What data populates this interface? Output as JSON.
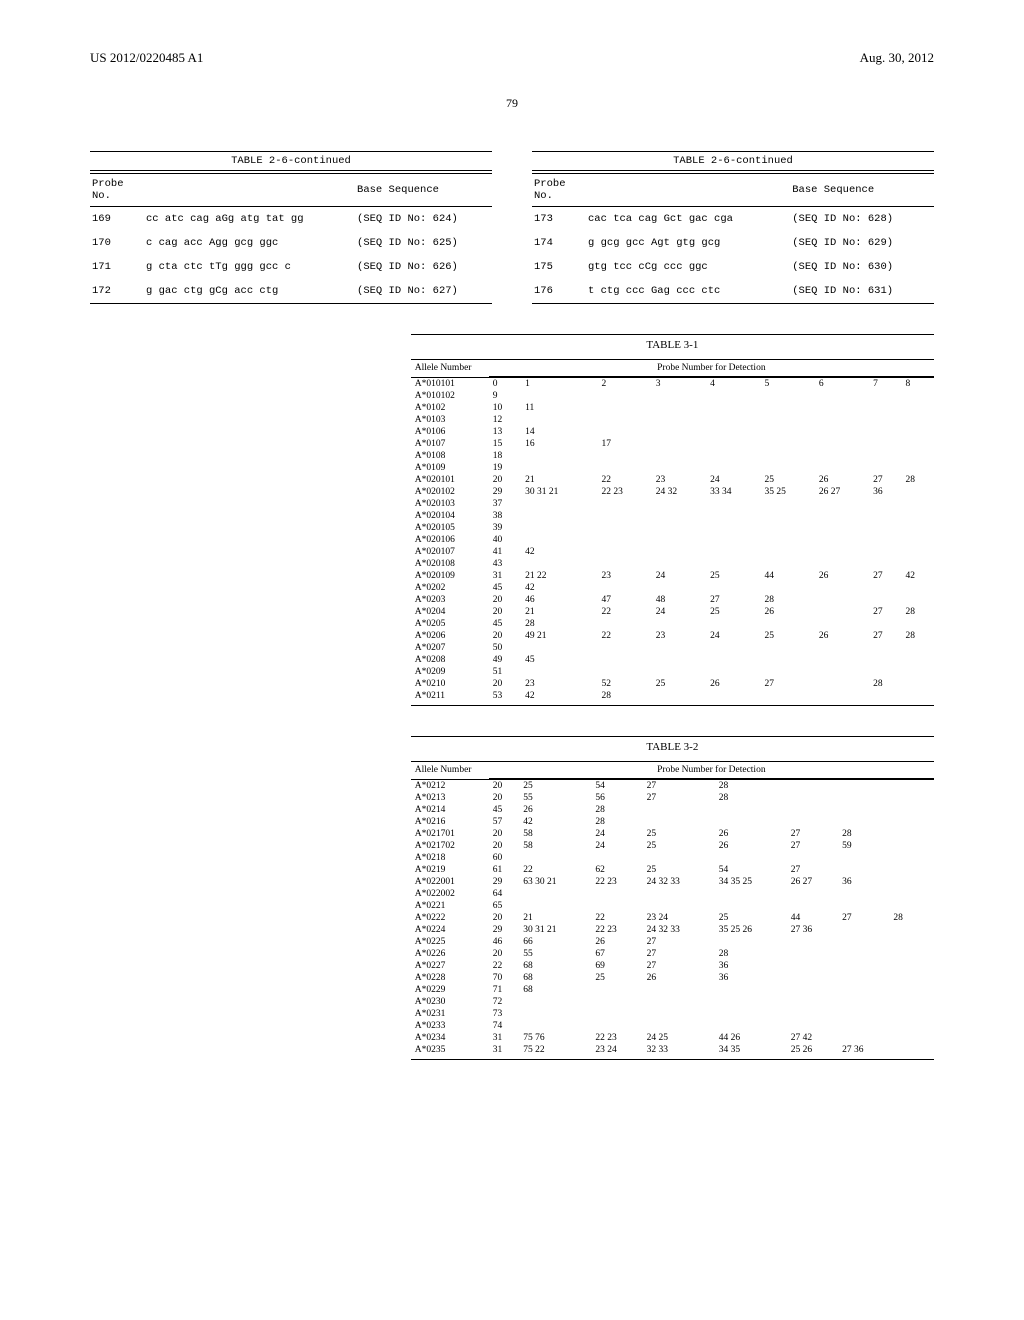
{
  "header": {
    "left": "US 2012/0220485 A1",
    "right": "Aug. 30, 2012"
  },
  "page_number": "79",
  "table26_left": {
    "caption": "TABLE 2-6-continued",
    "header_col1": "Probe\nNo.",
    "header_col2": "Base Sequence",
    "rows": [
      {
        "no": "169",
        "seq": "cc atc cag aGg atg tat gg",
        "id": "(SEQ ID No: 624)"
      },
      {
        "no": "170",
        "seq": "c cag acc Agg gcg ggc",
        "id": "(SEQ ID No: 625)"
      },
      {
        "no": "171",
        "seq": "g cta ctc tTg ggg gcc c",
        "id": "(SEQ ID No: 626)"
      },
      {
        "no": "172",
        "seq": "g gac ctg gCg acc ctg",
        "id": "(SEQ ID No: 627)"
      }
    ]
  },
  "table26_right": {
    "caption": "TABLE 2-6-continued",
    "header_col1": "Probe\nNo.",
    "header_col2": "Base Sequence",
    "rows": [
      {
        "no": "173",
        "seq": "cac tca cag Gct gac cga",
        "id": "(SEQ ID No: 628)"
      },
      {
        "no": "174",
        "seq": "g gcg gcc Agt gtg gcg",
        "id": "(SEQ ID No: 629)"
      },
      {
        "no": "175",
        "seq": "gtg tcc cCg ccc ggc",
        "id": "(SEQ ID No: 630)"
      },
      {
        "no": "176",
        "seq": "t ctg ccc Gag ccc ctc",
        "id": "(SEQ ID No: 631)"
      }
    ]
  },
  "table31": {
    "caption": "TABLE 3-1",
    "header_allele": "Allele Number",
    "header_group": "Probe Number for Detection",
    "rows": [
      {
        "a": "A*010101",
        "c": [
          "0",
          "1",
          "2",
          "3",
          "4",
          "5",
          "6",
          "7",
          "8"
        ]
      },
      {
        "a": "A*010102",
        "c": [
          "9",
          "",
          "",
          "",
          "",
          "",
          "",
          "",
          ""
        ]
      },
      {
        "a": "A*0102",
        "c": [
          "10",
          "11",
          "",
          "",
          "",
          "",
          "",
          "",
          ""
        ]
      },
      {
        "a": "A*0103",
        "c": [
          "12",
          "",
          "",
          "",
          "",
          "",
          "",
          "",
          ""
        ]
      },
      {
        "a": "A*0106",
        "c": [
          "13",
          "14",
          "",
          "",
          "",
          "",
          "",
          "",
          ""
        ]
      },
      {
        "a": "A*0107",
        "c": [
          "15",
          "16",
          "17",
          "",
          "",
          "",
          "",
          "",
          ""
        ]
      },
      {
        "a": "A*0108",
        "c": [
          "18",
          "",
          "",
          "",
          "",
          "",
          "",
          "",
          ""
        ]
      },
      {
        "a": "A*0109",
        "c": [
          "19",
          "",
          "",
          "",
          "",
          "",
          "",
          "",
          ""
        ]
      },
      {
        "a": "A*020101",
        "c": [
          "20",
          "21",
          "22",
          "23",
          "24",
          "25",
          "26",
          "27",
          "28"
        ]
      },
      {
        "a": "A*020102",
        "c": [
          "29",
          "30 31 21",
          "22 23",
          "24 32",
          "33 34",
          "35 25",
          "26 27",
          "36",
          ""
        ]
      },
      {
        "a": "A*020103",
        "c": [
          "37",
          "",
          "",
          "",
          "",
          "",
          "",
          "",
          ""
        ]
      },
      {
        "a": "A*020104",
        "c": [
          "38",
          "",
          "",
          "",
          "",
          "",
          "",
          "",
          ""
        ]
      },
      {
        "a": "A*020105",
        "c": [
          "39",
          "",
          "",
          "",
          "",
          "",
          "",
          "",
          ""
        ]
      },
      {
        "a": "A*020106",
        "c": [
          "40",
          "",
          "",
          "",
          "",
          "",
          "",
          "",
          ""
        ]
      },
      {
        "a": "A*020107",
        "c": [
          "41",
          "42",
          "",
          "",
          "",
          "",
          "",
          "",
          ""
        ]
      },
      {
        "a": "A*020108",
        "c": [
          "43",
          "",
          "",
          "",
          "",
          "",
          "",
          "",
          ""
        ]
      },
      {
        "a": "A*020109",
        "c": [
          "31",
          "21   22",
          "23",
          "24",
          "25",
          "44",
          "26",
          "27",
          "42"
        ]
      },
      {
        "a": "A*0202",
        "c": [
          "45",
          "42",
          "",
          "",
          "",
          "",
          "",
          "",
          ""
        ]
      },
      {
        "a": "A*0203",
        "c": [
          "20",
          "46",
          "47",
          "48",
          "27",
          "28",
          "",
          "",
          ""
        ]
      },
      {
        "a": "A*0204",
        "c": [
          "20",
          "21",
          "22",
          "24",
          "25",
          "26",
          "",
          "27",
          "28"
        ]
      },
      {
        "a": "A*0205",
        "c": [
          "45",
          "28",
          "",
          "",
          "",
          "",
          "",
          "",
          ""
        ]
      },
      {
        "a": "A*0206",
        "c": [
          "20",
          "49   21",
          "22",
          "23",
          "24",
          "25",
          "26",
          "27",
          "28"
        ]
      },
      {
        "a": "A*0207",
        "c": [
          "50",
          "",
          "",
          "",
          "",
          "",
          "",
          "",
          ""
        ]
      },
      {
        "a": "A*0208",
        "c": [
          "49",
          "45",
          "",
          "",
          "",
          "",
          "",
          "",
          ""
        ]
      },
      {
        "a": "A*0209",
        "c": [
          "51",
          "",
          "",
          "",
          "",
          "",
          "",
          "",
          ""
        ]
      },
      {
        "a": "A*0210",
        "c": [
          "20",
          "23",
          "52",
          "25",
          "26",
          "27",
          "",
          "28",
          ""
        ]
      },
      {
        "a": "A*0211",
        "c": [
          "53",
          "42",
          "28",
          "",
          "",
          "",
          "",
          "",
          ""
        ]
      }
    ]
  },
  "table32": {
    "caption": "TABLE 3-2",
    "header_allele": "Allele Number",
    "header_group": "Probe Number for Detection",
    "rows": [
      {
        "a": "A*0212",
        "c": [
          "20",
          "25",
          "54",
          "27",
          "28",
          "",
          "",
          "",
          ""
        ]
      },
      {
        "a": "A*0213",
        "c": [
          "20",
          "55",
          "56",
          "27",
          "28",
          "",
          "",
          "",
          ""
        ]
      },
      {
        "a": "A*0214",
        "c": [
          "45",
          "26",
          "28",
          "",
          "",
          "",
          "",
          "",
          ""
        ]
      },
      {
        "a": "A*0216",
        "c": [
          "57",
          "42",
          "28",
          "",
          "",
          "",
          "",
          "",
          ""
        ]
      },
      {
        "a": "A*021701",
        "c": [
          "20",
          "58",
          "24",
          "25",
          "26",
          "27",
          "28",
          "",
          ""
        ]
      },
      {
        "a": "A*021702",
        "c": [
          "20",
          "58",
          "24",
          "25",
          "26",
          "27",
          "59",
          "",
          ""
        ]
      },
      {
        "a": "A*0218",
        "c": [
          "60",
          "",
          "",
          "",
          "",
          "",
          "",
          "",
          ""
        ]
      },
      {
        "a": "A*0219",
        "c": [
          "61",
          "22",
          "62",
          "25",
          "54",
          "27",
          "",
          "",
          ""
        ]
      },
      {
        "a": "A*022001",
        "c": [
          "29",
          "63 30 21",
          "22 23",
          "24 32 33",
          "34 35 25",
          "26 27",
          "36",
          "",
          ""
        ]
      },
      {
        "a": "A*022002",
        "c": [
          "64",
          "",
          "",
          "",
          "",
          "",
          "",
          "",
          ""
        ]
      },
      {
        "a": "A*0221",
        "c": [
          "65",
          "",
          "",
          "",
          "",
          "",
          "",
          "",
          ""
        ]
      },
      {
        "a": "A*0222",
        "c": [
          "20",
          "21",
          "22",
          "23 24",
          "25",
          "44",
          "27",
          "28",
          ""
        ]
      },
      {
        "a": "A*0224",
        "c": [
          "29",
          "30 31 21",
          "22 23",
          "24 32 33",
          "35 25 26",
          "27 36",
          "",
          "",
          ""
        ]
      },
      {
        "a": "A*0225",
        "c": [
          "46",
          "66",
          "26",
          "27",
          "",
          "",
          "",
          "",
          ""
        ]
      },
      {
        "a": "A*0226",
        "c": [
          "20",
          "55",
          "67",
          "27",
          "28",
          "",
          "",
          "",
          ""
        ]
      },
      {
        "a": "A*0227",
        "c": [
          "22",
          "68",
          "69",
          "27",
          "36",
          "",
          "",
          "",
          ""
        ]
      },
      {
        "a": "A*0228",
        "c": [
          "70",
          "68",
          "25",
          "26",
          "36",
          "",
          "",
          "",
          ""
        ]
      },
      {
        "a": "A*0229",
        "c": [
          "71",
          "68",
          "",
          "",
          "",
          "",
          "",
          "",
          ""
        ]
      },
      {
        "a": "A*0230",
        "c": [
          "72",
          "",
          "",
          "",
          "",
          "",
          "",
          "",
          ""
        ]
      },
      {
        "a": "A*0231",
        "c": [
          "73",
          "",
          "",
          "",
          "",
          "",
          "",
          "",
          ""
        ]
      },
      {
        "a": "A*0233",
        "c": [
          "74",
          "",
          "",
          "",
          "",
          "",
          "",
          "",
          ""
        ]
      },
      {
        "a": "A*0234",
        "c": [
          "31",
          "75 76",
          "22 23",
          "24 25",
          "44 26",
          "27 42",
          "",
          "",
          ""
        ]
      },
      {
        "a": "A*0235",
        "c": [
          "31",
          "75 22",
          "23 24",
          "32 33",
          "34 35",
          "25 26",
          "27 36",
          "",
          ""
        ]
      }
    ]
  }
}
